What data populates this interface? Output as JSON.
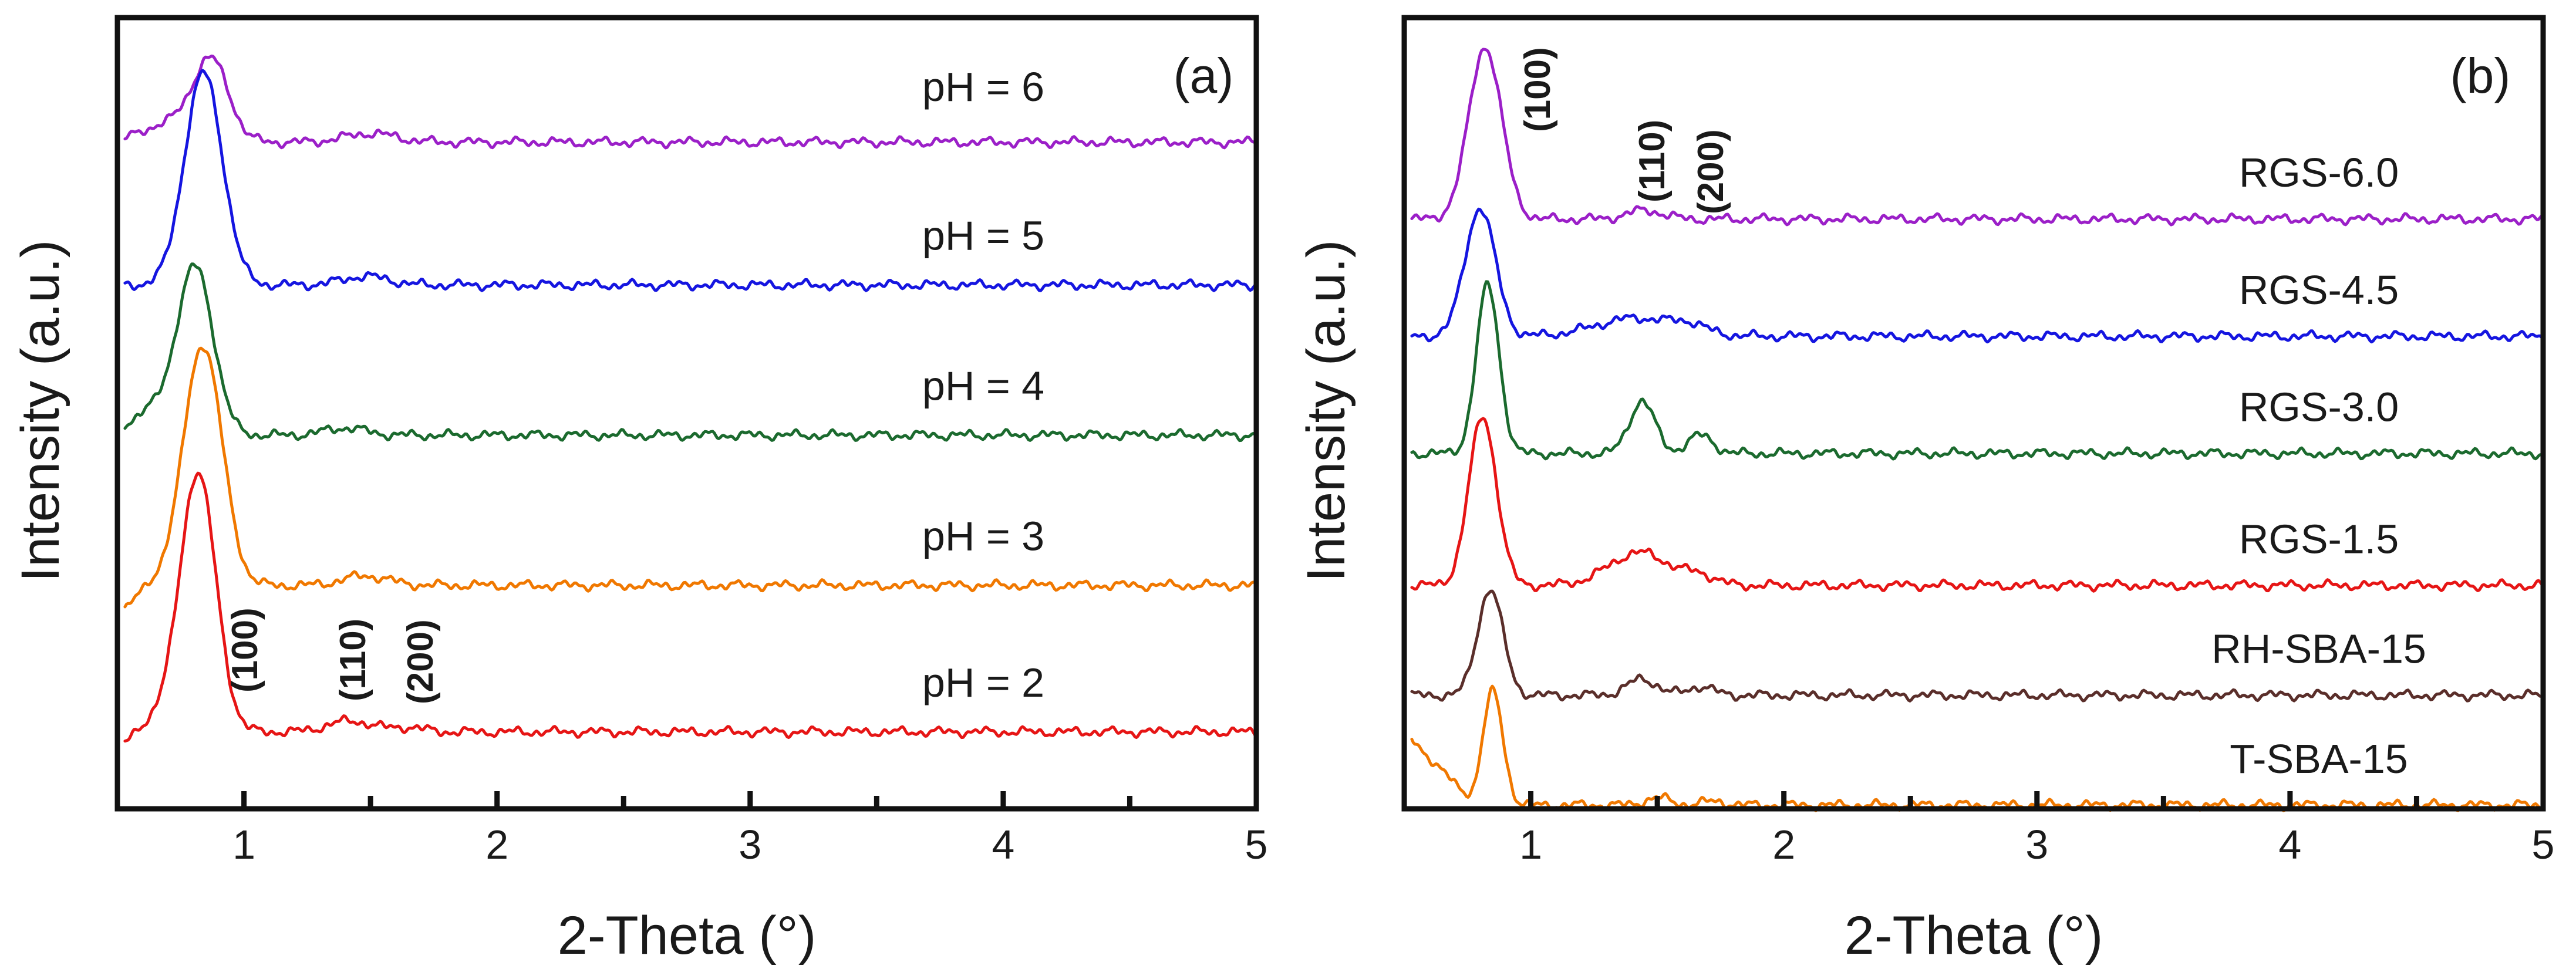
{
  "chart_data": [
    {
      "type": "line",
      "panel_label": "(a)",
      "xlabel": "2-Theta (°)",
      "ylabel": "Intensity (a.u.)",
      "xlim": [
        0.5,
        5
      ],
      "x_ticks": [
        1,
        2,
        3,
        4,
        5
      ],
      "x_minor_ticks": [
        1.5,
        2.5,
        3.5,
        4.5
      ],
      "y_ticks_shown": false,
      "grid": false,
      "series": [
        {
          "name": "pH = 6",
          "color": "#9b1fc8",
          "baseline": 9.1,
          "peaks": [
            {
              "x": 0.87,
              "h": 1.1,
              "w": 0.07
            },
            {
              "x": 0.7,
              "h": 0.25,
              "w": 0.1
            },
            {
              "x": 1.5,
              "h": 0.12,
              "w": 0.1
            }
          ],
          "x_start": 0.53,
          "start_level": 9.1
        },
        {
          "name": "pH = 5",
          "color": "#1515e0",
          "baseline": 7.15,
          "peaks": [
            {
              "x": 0.84,
              "h": 2.9,
              "w": 0.075
            },
            {
              "x": 1.48,
              "h": 0.12,
              "w": 0.09
            }
          ],
          "x_start": 0.53,
          "start_level": 7.15
        },
        {
          "name": "pH = 4",
          "color": "#1b6a2e",
          "baseline": 5.1,
          "peaks": [
            {
              "x": 0.81,
              "h": 2.2,
              "w": 0.07
            },
            {
              "x": 0.66,
              "h": 0.35,
              "w": 0.1
            },
            {
              "x": 1.4,
              "h": 0.1,
              "w": 0.08
            }
          ],
          "x_start": 0.53,
          "start_level": 5.1
        },
        {
          "name": "pH = 3",
          "color": "#f07800",
          "baseline": 3.05,
          "peaks": [
            {
              "x": 0.84,
              "h": 3.2,
              "w": 0.075
            },
            {
              "x": 0.65,
              "h": 0.3,
              "w": 0.12
            },
            {
              "x": 1.48,
              "h": 0.13,
              "w": 0.09
            }
          ],
          "x_start": 0.53,
          "start_level": 2.55
        },
        {
          "name": "pH = 2",
          "color": "#e61515",
          "baseline": 1.05,
          "peaks": [
            {
              "x": 0.82,
              "h": 3.4,
              "w": 0.07
            },
            {
              "x": 0.65,
              "h": 0.4,
              "w": 0.12
            },
            {
              "x": 1.42,
              "h": 0.15,
              "w": 0.09
            },
            {
              "x": 1.65,
              "h": 0.06,
              "w": 0.06
            }
          ],
          "x_start": 0.53,
          "start_level": 0.65
        }
      ],
      "annotations": [
        "(100)",
        "(110)",
        "(200)"
      ]
    },
    {
      "type": "line",
      "panel_label": "(b)",
      "xlabel": "2-Theta (°)",
      "ylabel": "Intensity (a.u.)",
      "xlim": [
        0.5,
        5
      ],
      "x_ticks": [
        1,
        2,
        3,
        4,
        5
      ],
      "x_minor_ticks": [
        1.5,
        2.5,
        3.5,
        4.5
      ],
      "y_ticks_shown": false,
      "grid": false,
      "series": [
        {
          "name": "RGS-6.0",
          "color": "#9b1fc8",
          "baseline": 8.05,
          "peaks": [
            {
              "x": 0.82,
              "h": 2.35,
              "w": 0.065
            },
            {
              "x": 1.45,
              "h": 0.12,
              "w": 0.07
            }
          ],
          "x_start": 0.53,
          "start_level": 8.05
        },
        {
          "name": "RGS-4.5",
          "color": "#1515e0",
          "baseline": 6.45,
          "peaks": [
            {
              "x": 0.8,
              "h": 1.75,
              "w": 0.06
            },
            {
              "x": 1.42,
              "h": 0.25,
              "w": 0.16
            },
            {
              "x": 1.63,
              "h": 0.1,
              "w": 0.06
            }
          ],
          "x_start": 0.53,
          "start_level": 6.45
        },
        {
          "name": "RGS-3.0",
          "color": "#1b6a2e",
          "baseline": 4.85,
          "peaks": [
            {
              "x": 0.83,
              "h": 2.3,
              "w": 0.045
            },
            {
              "x": 1.44,
              "h": 0.72,
              "w": 0.05
            },
            {
              "x": 1.67,
              "h": 0.25,
              "w": 0.05
            }
          ],
          "x_start": 0.53,
          "start_level": 4.85
        },
        {
          "name": "RGS-1.5",
          "color": "#e61515",
          "baseline": 3.05,
          "peaks": [
            {
              "x": 0.81,
              "h": 2.3,
              "w": 0.055
            },
            {
              "x": 1.43,
              "h": 0.45,
              "w": 0.12
            },
            {
              "x": 1.67,
              "h": 0.12,
              "w": 0.06
            }
          ],
          "x_start": 0.53,
          "start_level": 3.05
        },
        {
          "name": "RH-SBA-15",
          "color": "#5a2e2a",
          "baseline": 1.55,
          "peaks": [
            {
              "x": 0.84,
              "h": 1.45,
              "w": 0.05
            },
            {
              "x": 1.44,
              "h": 0.22,
              "w": 0.06
            },
            {
              "x": 1.67,
              "h": 0.12,
              "w": 0.05
            }
          ],
          "x_start": 0.53,
          "start_level": 1.55
        },
        {
          "name": "T-SBA-15",
          "color": "#f07800",
          "baseline": 0.05,
          "peaks": [
            {
              "x": 0.85,
              "h": 1.55,
              "w": 0.04
            },
            {
              "x": 1.5,
              "h": 0.1,
              "w": 0.05
            },
            {
              "x": 1.72,
              "h": 0.05,
              "w": 0.05
            }
          ],
          "x_start": 0.53,
          "start_level": 0.95
        }
      ],
      "annotations": [
        "(100)",
        "(110)",
        "(200)"
      ]
    }
  ]
}
